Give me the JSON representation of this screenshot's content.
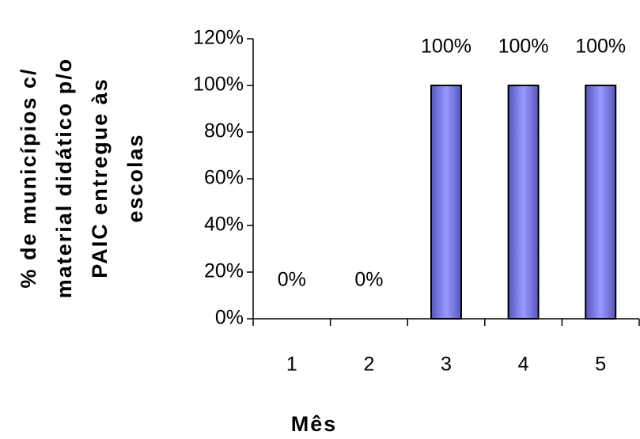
{
  "chart_data": {
    "type": "bar",
    "xlabel": "Mês",
    "ylabel": [
      "% de municípios c/",
      "material didático p/o",
      "PAIC entregue às",
      "escolas"
    ],
    "categories": [
      "1",
      "2",
      "3",
      "4",
      "5"
    ],
    "values": [
      0,
      0,
      100,
      100,
      100
    ],
    "value_labels": [
      "0%",
      "0%",
      "100%",
      "100%",
      "100%"
    ],
    "color": "#9999ff",
    "ylim": [
      0,
      120
    ],
    "yticks": [
      {
        "value": 0,
        "label": "0%"
      },
      {
        "value": 20,
        "label": "20%"
      },
      {
        "value": 40,
        "label": "40%"
      },
      {
        "value": 60,
        "label": "60%"
      },
      {
        "value": 80,
        "label": "80%"
      },
      {
        "value": 100,
        "label": "100%"
      },
      {
        "value": 120,
        "label": "120%"
      }
    ],
    "grid": false
  }
}
